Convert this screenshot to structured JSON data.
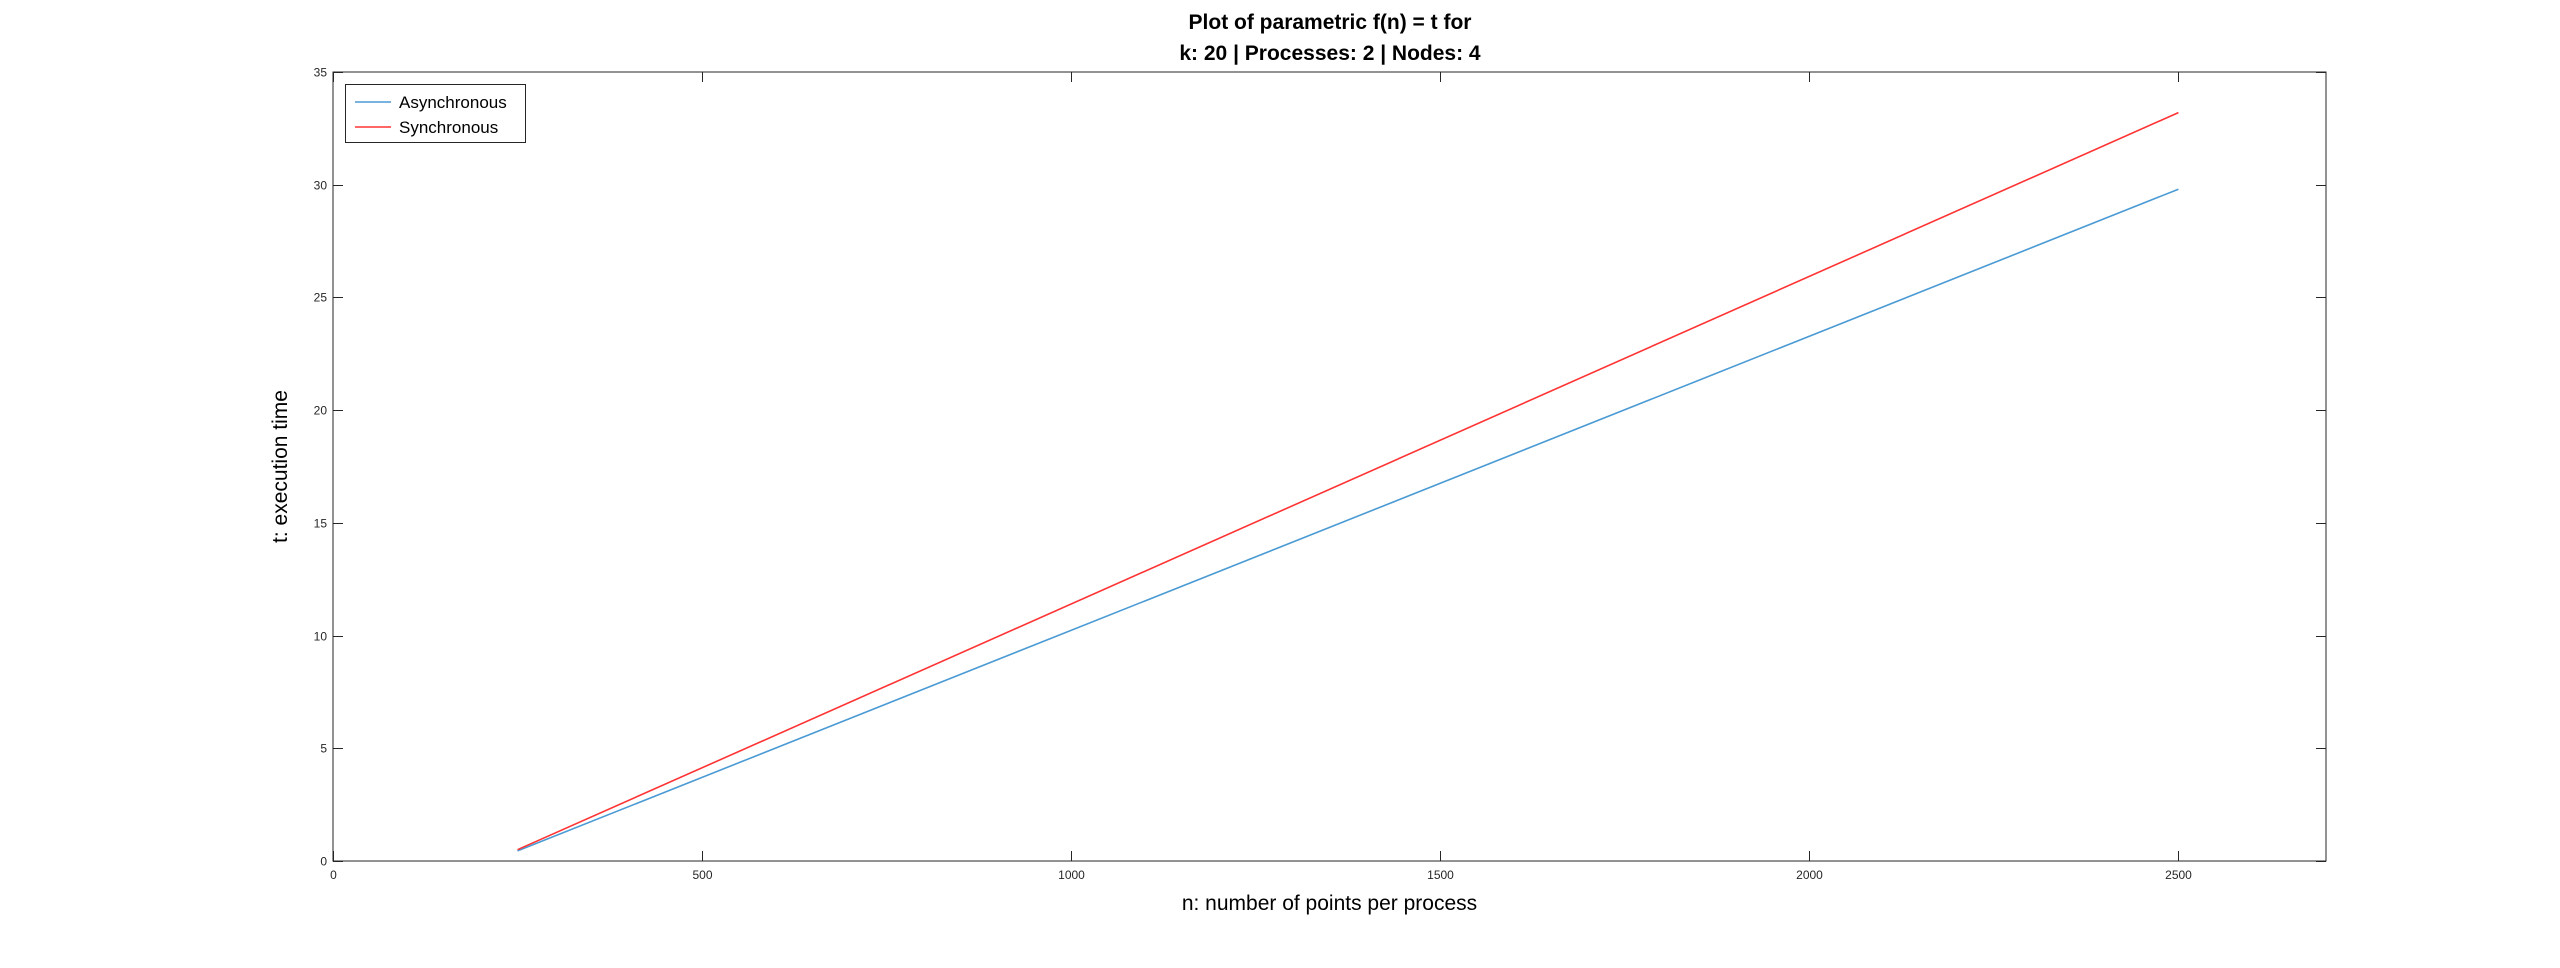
{
  "chart_data": {
    "type": "line",
    "title_lines": [
      "Plot of parametric f(n) = t for",
      "k: 20 | Processes: 2 | Nodes: 4"
    ],
    "xlabel": "n: number of points per process",
    "ylabel": "t: execution time",
    "xlim": [
      0,
      2700
    ],
    "ylim": [
      0,
      35
    ],
    "xticks": [
      0,
      500,
      1000,
      1500,
      2000,
      2500
    ],
    "yticks": [
      0,
      5,
      10,
      15,
      20,
      25,
      30,
      35
    ],
    "grid": false,
    "legend_position": "top-left",
    "series": [
      {
        "name": "Asynchronous",
        "color": "#4a9ad4",
        "x": [
          250,
          2500
        ],
        "y": [
          0.45,
          29.8
        ]
      },
      {
        "name": "Synchronous",
        "color": "#ff3333",
        "x": [
          250,
          2500
        ],
        "y": [
          0.5,
          33.2
        ]
      }
    ]
  }
}
